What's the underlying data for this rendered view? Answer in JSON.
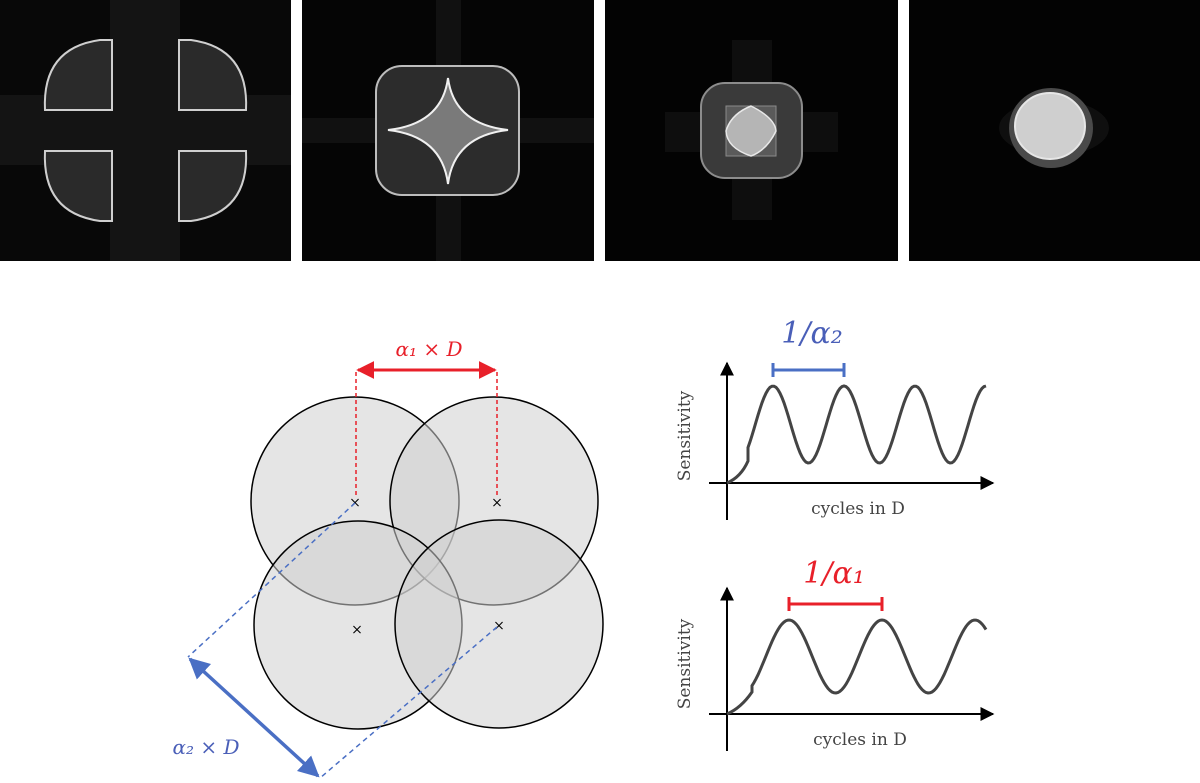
{
  "colors": {
    "red": "#e8202a",
    "blue": "#4a6fc4",
    "blue_label": "#4a5fb8",
    "circle_fill": "#cfcfcf",
    "panel_bg": "#000000"
  },
  "panels": [
    {
      "name": "four-lobe-pattern"
    },
    {
      "name": "star-pattern"
    },
    {
      "name": "nested-square-pattern"
    },
    {
      "name": "disc-pattern"
    }
  ],
  "diagram": {
    "alpha1_label": "α₁ × D",
    "alpha2_label": "α₂ × D",
    "center_marker": "×"
  },
  "plots": [
    {
      "period_label": "1/α₂",
      "ylabel": "Sensitivity",
      "xlabel": "cycles in D",
      "color": "#4a6fc4",
      "cycles_visible": 3
    },
    {
      "period_label": "1/α₁",
      "ylabel": "Sensitivity",
      "xlabel": "cycles in D",
      "color": "#e8202a",
      "cycles_visible": 2.4
    }
  ]
}
